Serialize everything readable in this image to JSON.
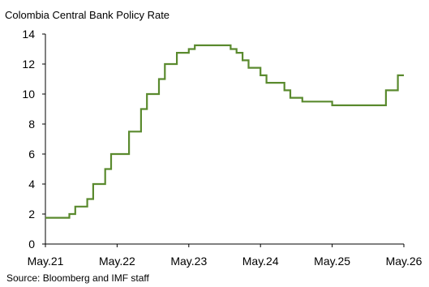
{
  "chart_data": {
    "type": "line",
    "title": "Colombia Central Bank Policy Rate",
    "source": "Source: Bloomberg and IMF staff",
    "xlabel": "",
    "ylabel": "",
    "ylim": [
      0,
      14
    ],
    "yticks": [
      0,
      2,
      4,
      6,
      8,
      10,
      12,
      14
    ],
    "xlim": [
      "2021-05",
      "2026-05"
    ],
    "xticks": [
      "May.21",
      "May.22",
      "May.23",
      "May.24",
      "May.25",
      "May.26"
    ],
    "grid": false,
    "line_style": "step",
    "colors": {
      "line": "#5a8a2e",
      "axis": "#000000"
    },
    "series": [
      {
        "x": [
          "2021-05",
          "2021-09",
          "2021-10",
          "2021-12",
          "2022-01",
          "2022-03",
          "2022-04",
          "2022-05",
          "2022-07",
          "2022-09",
          "2022-10",
          "2022-12",
          "2023-01",
          "2023-03",
          "2023-04",
          "2023-05",
          "2023-06",
          "2023-12",
          "2024-01",
          "2024-02",
          "2024-03",
          "2024-04",
          "2024-05",
          "2024-06",
          "2024-07",
          "2024-09",
          "2024-10",
          "2024-11",
          "2024-12",
          "2025-05",
          "2026-02",
          "2026-03",
          "2026-04",
          "2026-05"
        ],
        "values": [
          1.75,
          2.0,
          2.5,
          3.0,
          4.0,
          5.0,
          6.0,
          6.0,
          7.5,
          9.0,
          10.0,
          11.0,
          12.0,
          12.75,
          12.75,
          13.0,
          13.25,
          13.0,
          12.75,
          12.25,
          11.75,
          11.75,
          11.25,
          10.75,
          10.75,
          10.25,
          9.75,
          9.75,
          9.5,
          9.25,
          10.25,
          10.25,
          11.25,
          11.25
        ]
      }
    ]
  }
}
